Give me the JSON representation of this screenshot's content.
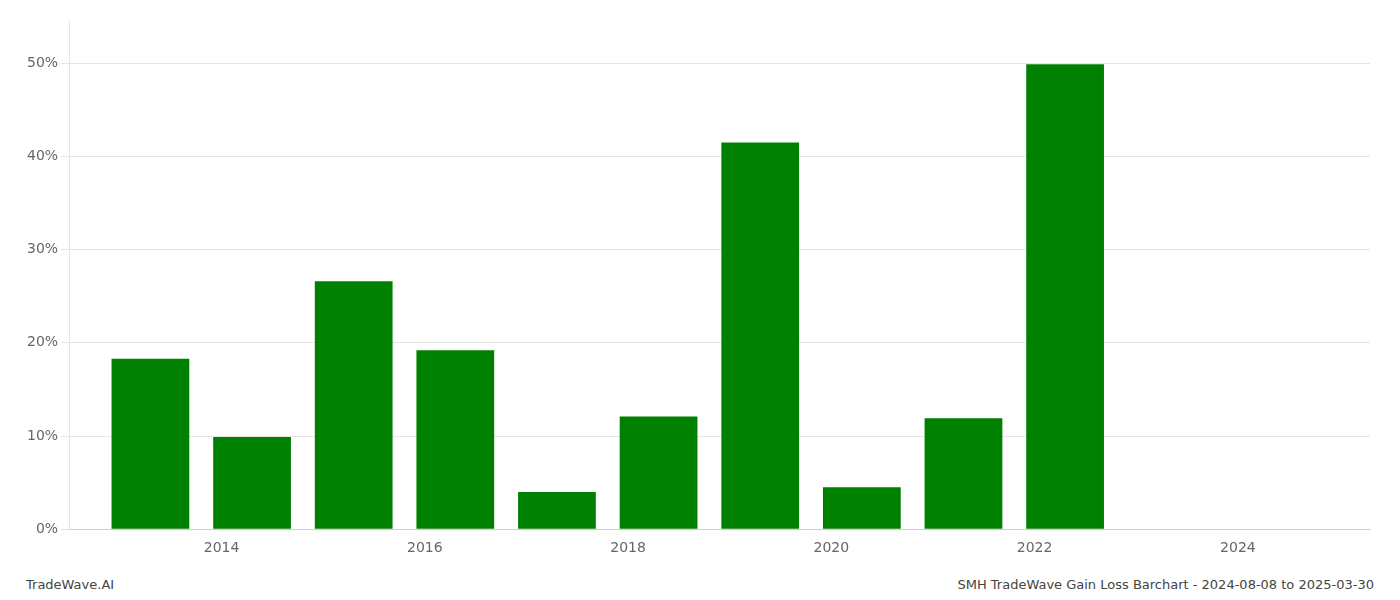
{
  "chart_data": {
    "type": "bar",
    "x": [
      2013.3,
      2014.3,
      2015.3,
      2016.3,
      2017.3,
      2018.3,
      2019.3,
      2020.3,
      2021.3,
      2022.3,
      2023.3
    ],
    "values": [
      0.183,
      0.099,
      0.266,
      0.192,
      0.04,
      0.121,
      0.415,
      0.045,
      0.119,
      0.499,
      0.0
    ],
    "color": "#008000",
    "xlim": [
      2012.5,
      2025.3
    ],
    "xticks": [
      2014,
      2016,
      2018,
      2020,
      2022,
      2024
    ],
    "ylim": [
      0,
      0.545
    ],
    "yticks": [
      {
        "value": 0.0,
        "label": "0%"
      },
      {
        "value": 0.1,
        "label": "10%"
      },
      {
        "value": 0.2,
        "label": "20%"
      },
      {
        "value": 0.3,
        "label": "30%"
      },
      {
        "value": 0.4,
        "label": "40%"
      },
      {
        "value": 0.5,
        "label": "50%"
      }
    ],
    "grid": true,
    "annotations": [
      "TradeWave.AI",
      "SMH TradeWave Gain Loss Barchart - 2024-08-08 to 2025-03-30"
    ]
  }
}
